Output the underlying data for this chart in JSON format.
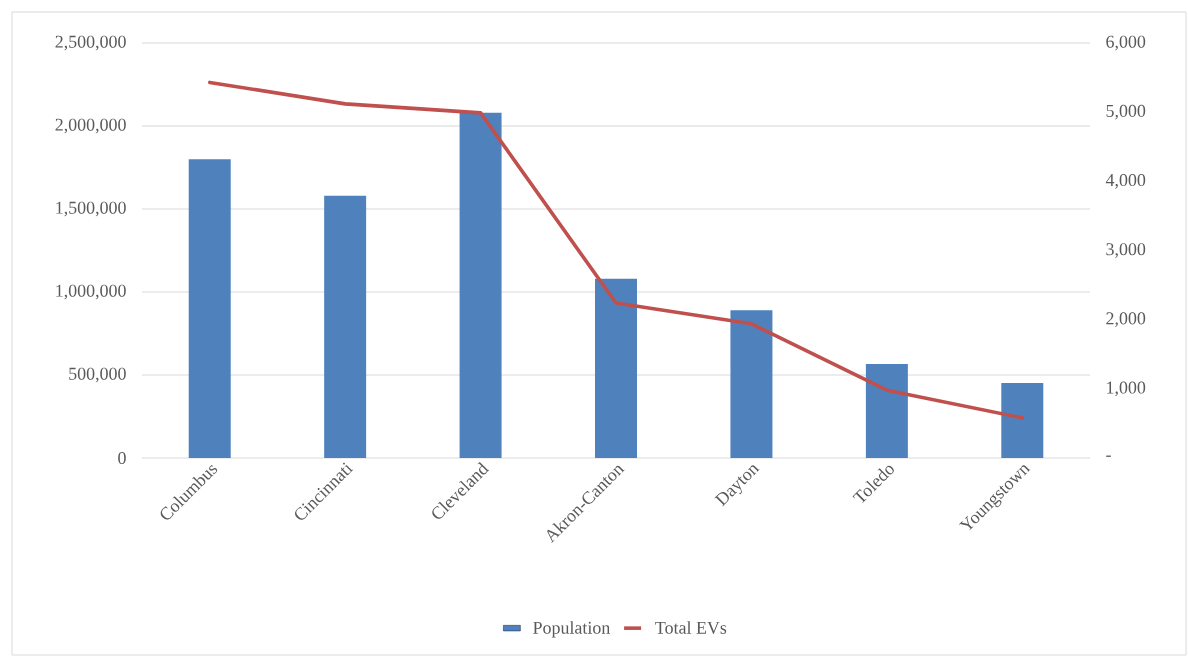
{
  "chart_data": {
    "type": "bar",
    "categories": [
      "Columbus",
      "Cincinnati",
      "Cleveland",
      "Akron-Canton",
      "Dayton",
      "Toledo",
      "Youngstown"
    ],
    "series": [
      {
        "name": "Population",
        "color": "#4f81bd",
        "values": [
          1800000,
          1580000,
          2080000,
          1080000,
          890000,
          566000,
          452000
        ]
      },
      {
        "name": "Total EVs",
        "type": "line",
        "axis": "y2",
        "color": "#c0504d",
        "values": [
          5430,
          5120,
          4990,
          2240,
          1940,
          980,
          580
        ]
      }
    ],
    "ylim": [
      0,
      2500000
    ],
    "yticks": [
      {
        "value": 0,
        "label": "0"
      },
      {
        "value": 500000,
        "label": "500,000"
      },
      {
        "value": 1000000,
        "label": "1,000,000"
      },
      {
        "value": 1500000,
        "label": "1,500,000"
      },
      {
        "value": 2000000,
        "label": "2,000,000"
      },
      {
        "value": 2500000,
        "label": "2,500,000"
      }
    ],
    "y2lim": [
      0,
      6000
    ],
    "y2ticks": [
      {
        "value": 0,
        "label": "-"
      },
      {
        "value": 1000,
        "label": "1,000"
      },
      {
        "value": 2000,
        "label": "2,000"
      },
      {
        "value": 3000,
        "label": "3,000"
      },
      {
        "value": 4000,
        "label": "4,000"
      },
      {
        "value": 5000,
        "label": "5,000"
      },
      {
        "value": 6000,
        "label": "6,000"
      }
    ],
    "grid": "y",
    "legend": "bottom"
  }
}
